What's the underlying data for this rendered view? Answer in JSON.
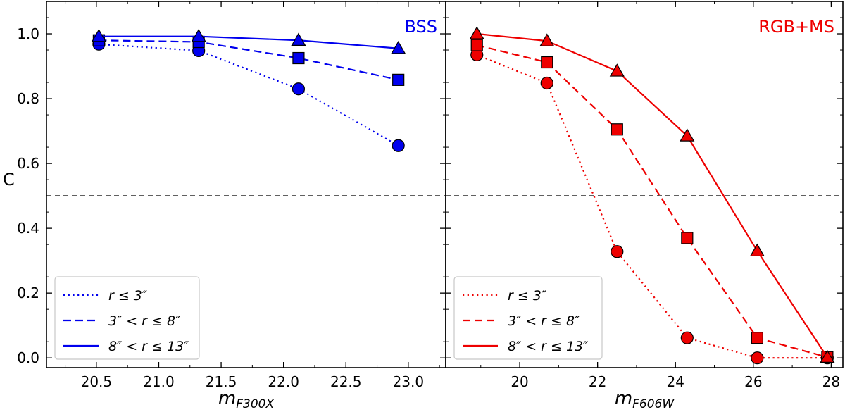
{
  "colors": {
    "left": "#0000ee",
    "right": "#ee0000",
    "axis": "#000000",
    "threshold": "#000000"
  },
  "shared": {
    "ylabel": "C",
    "yticks": [
      0.0,
      0.2,
      0.4,
      0.6,
      0.8,
      1.0
    ],
    "ytick_labels": [
      "0.0",
      "0.2",
      "0.4",
      "0.6",
      "0.8",
      "1.0"
    ],
    "ylim": [
      -0.03,
      1.1
    ],
    "threshold": 0.5
  },
  "chart_data": [
    {
      "type": "line",
      "panel": "left",
      "title": "BSS",
      "xlabel_main": "m",
      "xlabel_sub": "F300X",
      "ylabel": "C",
      "xlim": [
        20.1,
        23.3
      ],
      "ylim": [
        -0.03,
        1.1
      ],
      "xticks": [
        20.5,
        21.0,
        21.5,
        22.0,
        22.5,
        23.0
      ],
      "xtick_labels": [
        "20.5",
        "21.0",
        "21.5",
        "22.0",
        "22.5",
        "23.0"
      ],
      "hline": 0.5,
      "legend_position": "lower-left",
      "series": [
        {
          "name": "r ≤ 3″",
          "style": "dotted",
          "marker": "circle",
          "x": [
            20.52,
            21.32,
            22.12,
            22.92
          ],
          "values": [
            0.968,
            0.948,
            0.83,
            0.655
          ]
        },
        {
          "name": "3″ < r ≤ 8″",
          "style": "dashed",
          "marker": "square",
          "x": [
            20.52,
            21.32,
            22.12,
            22.92
          ],
          "values": [
            0.98,
            0.975,
            0.925,
            0.858
          ]
        },
        {
          "name": "8″ < r ≤ 13″",
          "style": "solid",
          "marker": "triangle",
          "x": [
            20.52,
            21.32,
            22.12,
            22.92
          ],
          "values": [
            0.992,
            0.992,
            0.98,
            0.955
          ]
        }
      ]
    },
    {
      "type": "line",
      "panel": "right",
      "title": "RGB+MS",
      "xlabel_main": "m",
      "xlabel_sub": "F606W",
      "ylabel": "C",
      "xlim": [
        18.1,
        28.3
      ],
      "ylim": [
        -0.03,
        1.1
      ],
      "xticks": [
        20,
        22,
        24,
        26,
        28
      ],
      "xtick_labels": [
        "20",
        "22",
        "24",
        "26",
        "28"
      ],
      "hline": 0.5,
      "legend_position": "lower-left",
      "series": [
        {
          "name": "r ≤ 3″",
          "style": "dotted",
          "marker": "circle",
          "x": [
            18.9,
            20.7,
            22.5,
            24.3,
            26.1,
            27.9
          ],
          "values": [
            0.935,
            0.848,
            0.328,
            0.062,
            0.0,
            0.0
          ]
        },
        {
          "name": "3″ < r ≤ 8″",
          "style": "dashed",
          "marker": "square",
          "x": [
            18.9,
            20.7,
            22.5,
            24.3,
            26.1,
            27.9
          ],
          "values": [
            0.965,
            0.912,
            0.705,
            0.37,
            0.062,
            0.002
          ]
        },
        {
          "name": "8″ < r ≤ 13″",
          "style": "solid",
          "marker": "triangle",
          "x": [
            18.9,
            20.7,
            22.5,
            24.3,
            26.1,
            27.9
          ],
          "values": [
            1.0,
            0.978,
            0.885,
            0.685,
            0.33,
            0.002
          ]
        }
      ]
    }
  ]
}
